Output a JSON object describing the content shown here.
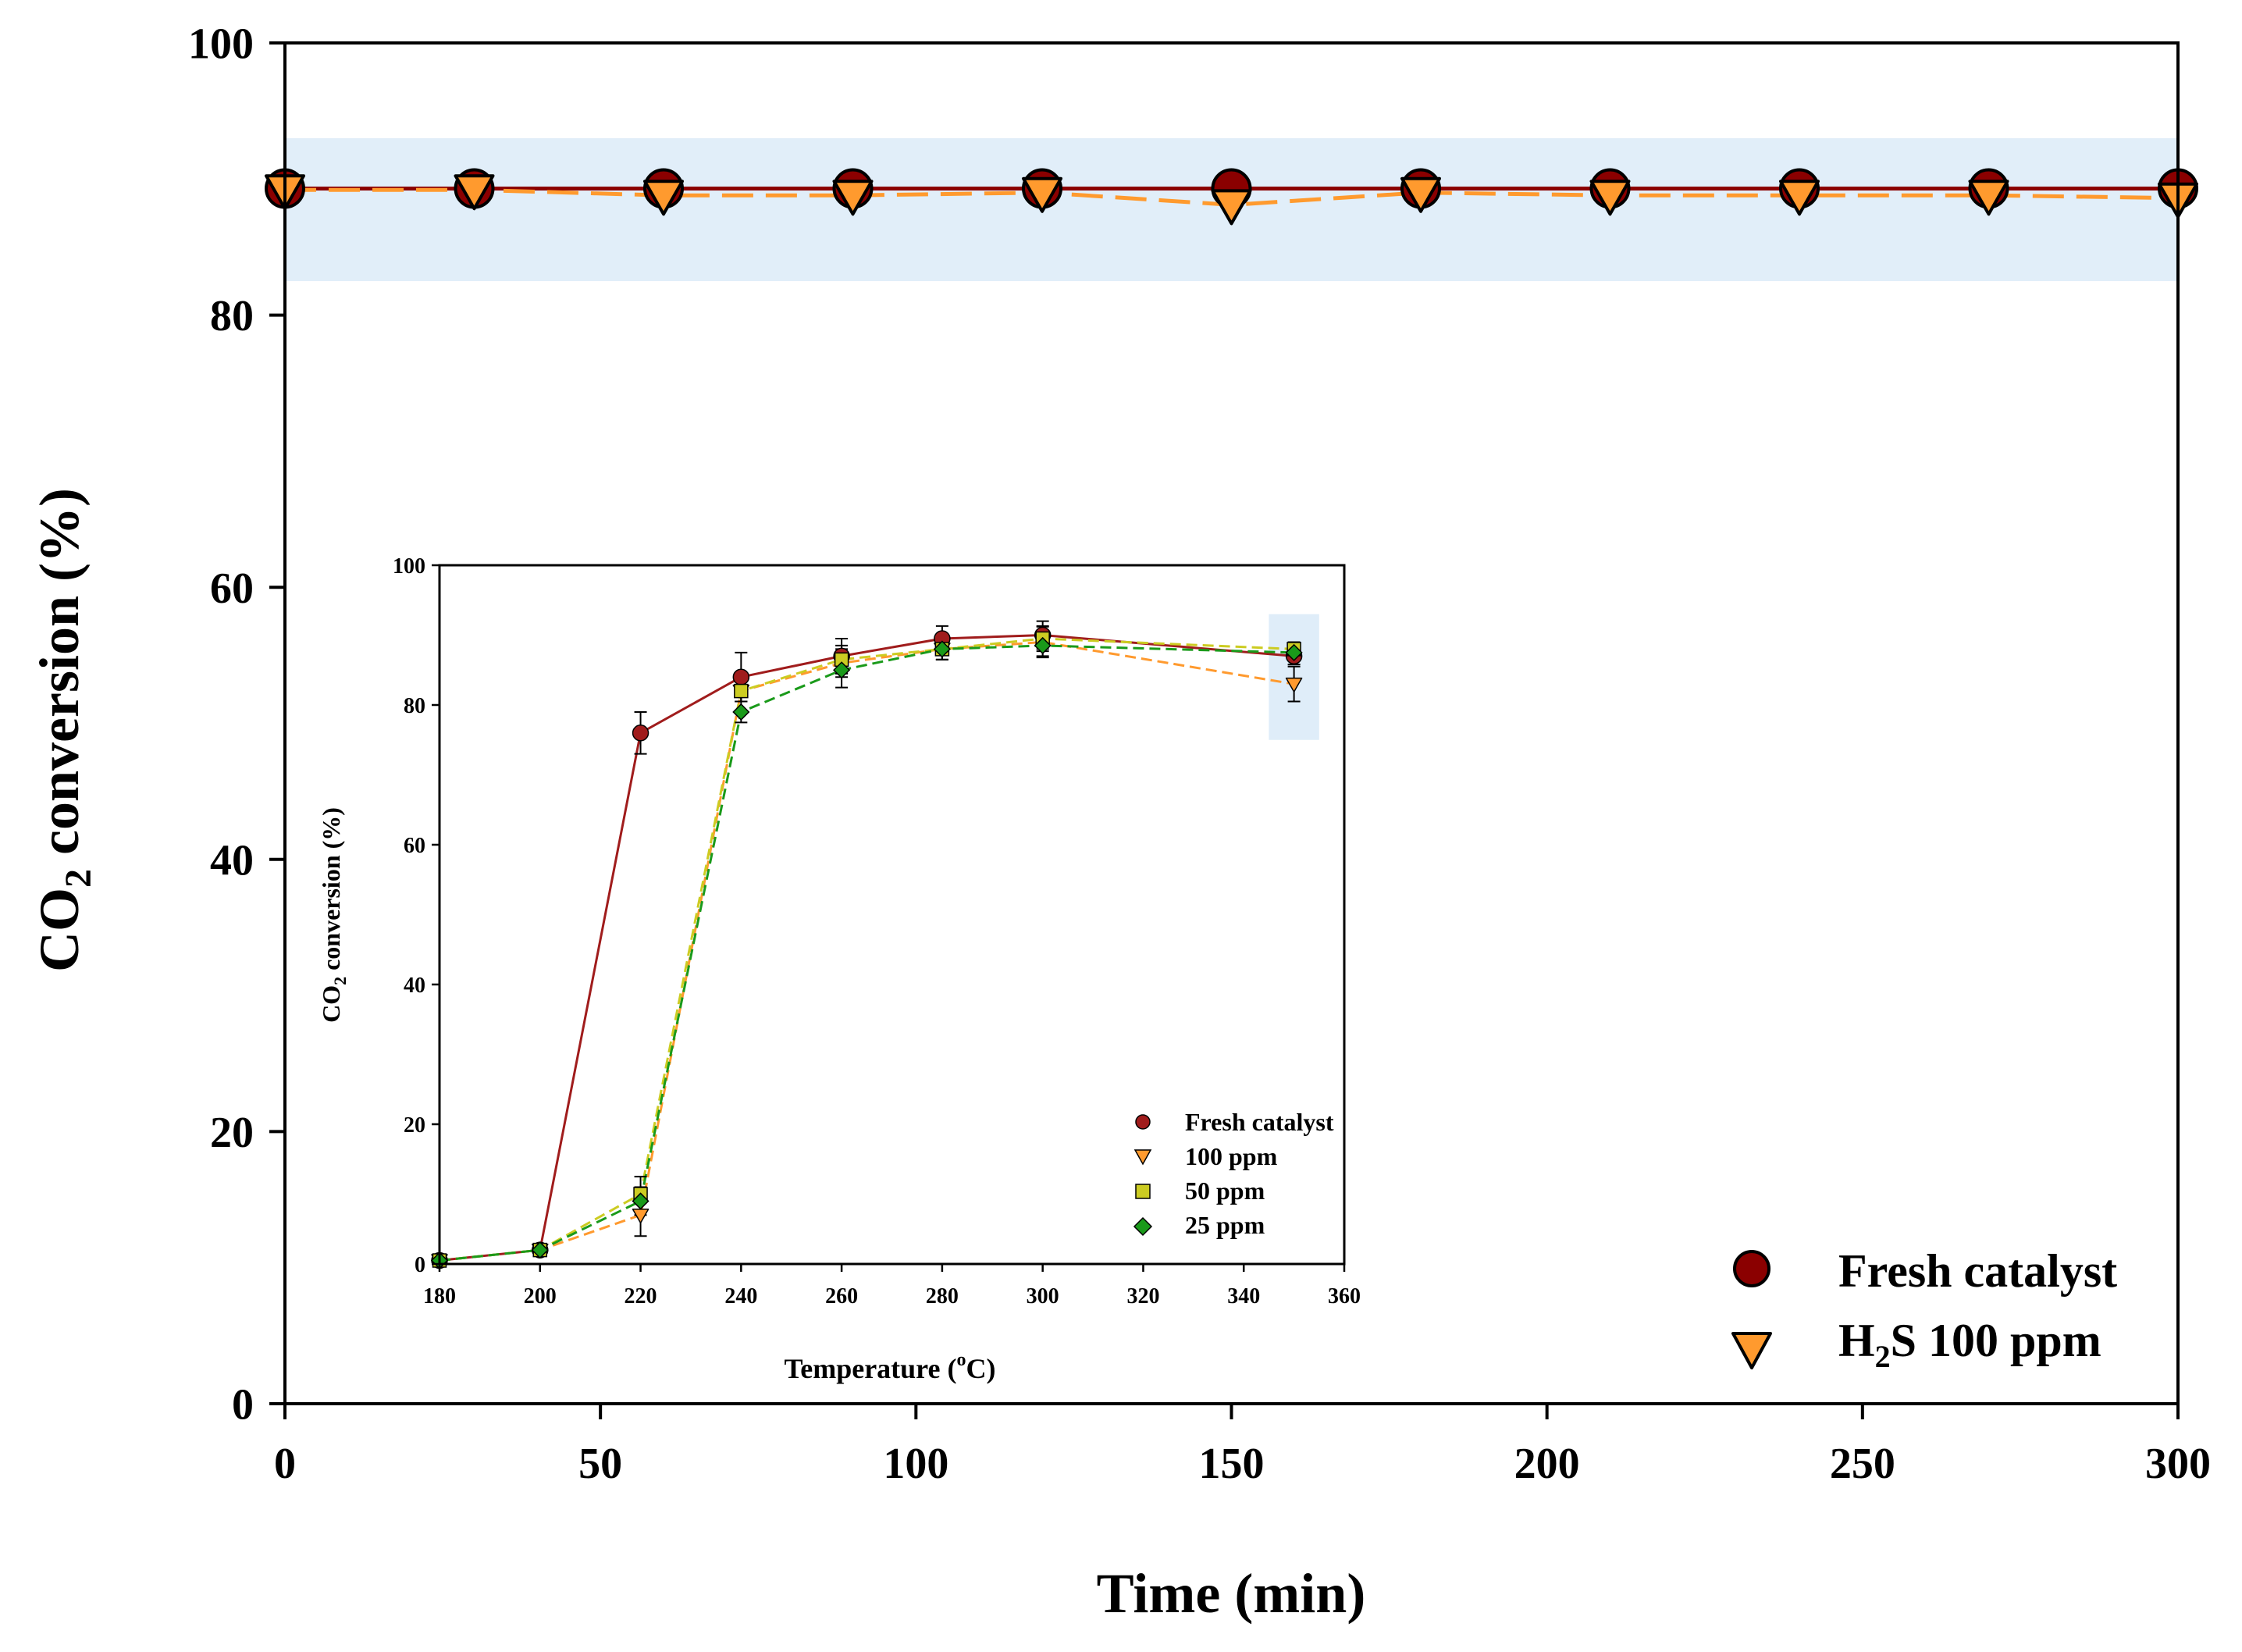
{
  "chart_data": [
    {
      "type": "line",
      "id": "main",
      "title": "",
      "ylabel_prefix": "CO",
      "ylabel_sub": "2",
      "ylabel_suffix": " conversion (%)",
      "xlabel": "Time (min)",
      "xlim": [
        0,
        300
      ],
      "ylim": [
        0,
        100
      ],
      "xticks": [
        0,
        50,
        100,
        150,
        200,
        250,
        300
      ],
      "yticks": [
        0,
        20,
        40,
        60,
        80,
        100
      ],
      "grid": false,
      "legend_position": "bottom-right",
      "highlight_band": {
        "y_from": 82.5,
        "y_to": 93
      },
      "series": [
        {
          "name": "Fresh catalyst",
          "marker": "circle",
          "color": "#8b0000",
          "line_style": "solid",
          "x": [
            0,
            30,
            60,
            90,
            120,
            150,
            180,
            210,
            240,
            270,
            300
          ],
          "y": [
            89.3,
            89.3,
            89.3,
            89.3,
            89.3,
            89.3,
            89.3,
            89.3,
            89.3,
            89.3,
            89.3
          ]
        },
        {
          "name": "H2S 100 ppm",
          "legend_prefix": "H",
          "legend_sub": "2",
          "legend_suffix": "S 100 ppm",
          "marker": "triangle-down",
          "color": "#ff9a2e",
          "line_style": "dashed",
          "x": [
            0,
            30,
            60,
            90,
            120,
            150,
            180,
            210,
            240,
            270,
            300
          ],
          "y": [
            89.2,
            89.2,
            88.8,
            88.8,
            89.0,
            88.1,
            89.0,
            88.8,
            88.8,
            88.8,
            88.6
          ]
        }
      ]
    },
    {
      "type": "line",
      "id": "inset",
      "title": "",
      "ylabel_prefix": "CO",
      "ylabel_sub": "2",
      "ylabel_suffix": " conversion (%)",
      "xlabel_prefix": "Temperature (",
      "xlabel_sup": "o",
      "xlabel_suffix": "C)",
      "xlim": [
        180,
        360
      ],
      "ylim": [
        0,
        100
      ],
      "xticks": [
        180,
        200,
        220,
        240,
        260,
        280,
        300,
        320,
        340,
        360
      ],
      "yticks": [
        0,
        20,
        40,
        60,
        80,
        100
      ],
      "grid": false,
      "legend_position": "bottom-right",
      "highlight_band": {
        "x_from": 345,
        "x_to": 355,
        "y_from": 75,
        "y_to": 93
      },
      "series": [
        {
          "name": "Fresh catalyst",
          "marker": "circle",
          "color": "#a01c1c",
          "line_style": "solid",
          "x": [
            180,
            200,
            220,
            240,
            260,
            280,
            300,
            350
          ],
          "y": [
            0.5,
            2,
            76,
            84,
            87,
            89.5,
            90,
            87
          ],
          "err": [
            0.5,
            0.7,
            3,
            3.5,
            2.5,
            1.8,
            2,
            1.2
          ]
        },
        {
          "name": "100 ppm",
          "marker": "triangle-down",
          "color": "#ff9a2e",
          "line_style": "dashed",
          "x": [
            180,
            200,
            220,
            240,
            260,
            280,
            300,
            350
          ],
          "y": [
            0.5,
            2,
            7,
            82,
            86,
            88,
            89,
            83
          ],
          "err": [
            0.5,
            0.6,
            3,
            1.5,
            2,
            1.5,
            2.2,
            2.5
          ]
        },
        {
          "name": "50 ppm",
          "marker": "square",
          "color": "#cccc22",
          "line_style": "dashed",
          "x": [
            180,
            200,
            220,
            240,
            260,
            280,
            300,
            350
          ],
          "y": [
            0.5,
            2,
            10,
            82,
            86.5,
            88,
            89.5,
            88
          ],
          "err": [
            0.5,
            0.6,
            2.5,
            1.5,
            2,
            1.5,
            1.8,
            1
          ]
        },
        {
          "name": "25 ppm",
          "marker": "diamond",
          "color": "#1a9a1a",
          "line_style": "dashed",
          "x": [
            180,
            200,
            220,
            240,
            260,
            280,
            300,
            350
          ],
          "y": [
            0.5,
            2,
            9,
            79,
            85,
            88,
            88.5,
            87.5
          ],
          "err": [
            0.5,
            0.6,
            2,
            1.5,
            2.5,
            1.5,
            1.5,
            1
          ]
        }
      ]
    }
  ]
}
